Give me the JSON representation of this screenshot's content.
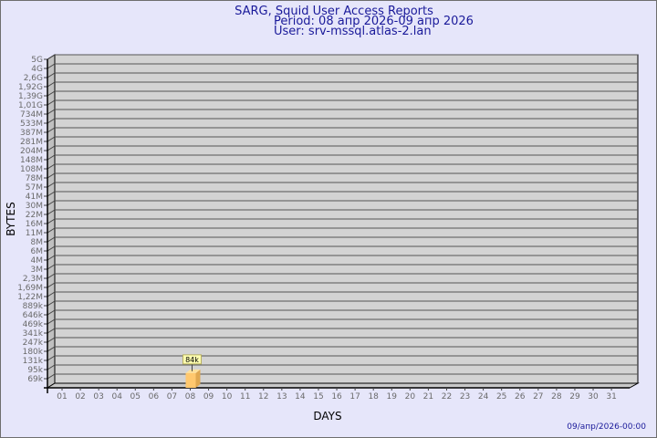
{
  "chart_data": {
    "type": "bar",
    "title": "SARG, Squid User Access Reports",
    "subtitle": [
      "Period: 08 апр 2026-09 апр 2026",
      "User: srv-mssql.atlas-2.lan"
    ],
    "xlabel": "DAYS",
    "ylabel": "BYTES",
    "y_scale": "log",
    "grid": true,
    "y_tick_labels": [
      "5G",
      "4G",
      "2,6G",
      "1,92G",
      "1,39G",
      "1,01G",
      "734M",
      "533M",
      "387M",
      "281M",
      "204M",
      "148M",
      "108M",
      "78M",
      "57M",
      "41M",
      "30M",
      "22M",
      "16M",
      "11M",
      "8M",
      "6M",
      "4M",
      "3M",
      "2,3M",
      "1,69M",
      "1,22M",
      "889k",
      "646k",
      "469k",
      "341k",
      "247k",
      "180k",
      "131k",
      "95k",
      "69k"
    ],
    "categories": [
      "01",
      "02",
      "03",
      "04",
      "05",
      "06",
      "07",
      "08",
      "09",
      "10",
      "11",
      "12",
      "13",
      "14",
      "15",
      "16",
      "17",
      "18",
      "19",
      "20",
      "21",
      "22",
      "23",
      "24",
      "25",
      "26",
      "27",
      "28",
      "29",
      "30",
      "31"
    ],
    "bars": [
      {
        "day": "08",
        "value": 84000,
        "label": "84k"
      }
    ],
    "footer": "09/апр/2026-00:00",
    "colors": {
      "background": "#e6e6fa",
      "plot": "#d3d3d3",
      "bar": "#ffc86e",
      "title": "#1a1a9a"
    }
  }
}
